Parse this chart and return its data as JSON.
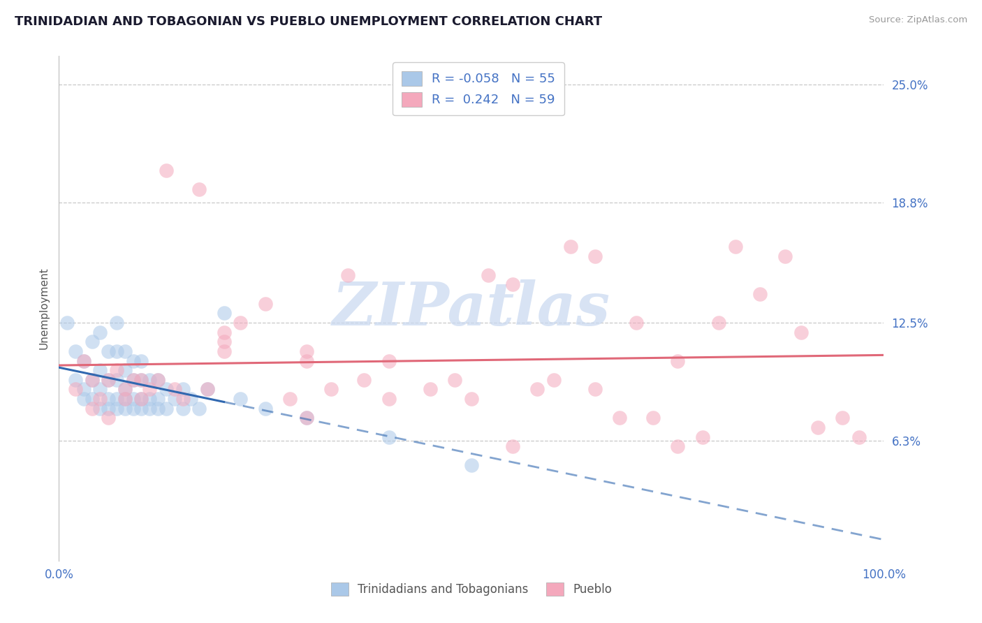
{
  "title": "TRINIDADIAN AND TOBAGONIAN VS PUEBLO UNEMPLOYMENT CORRELATION CHART",
  "source_text": "Source: ZipAtlas.com",
  "ylabel": "Unemployment",
  "xlim": [
    0.0,
    100.0
  ],
  "ylim": [
    0.0,
    26.5
  ],
  "yticks": [
    6.3,
    12.5,
    18.8,
    25.0
  ],
  "ytick_labels": [
    "6.3%",
    "12.5%",
    "18.8%",
    "25.0%"
  ],
  "xtick_labels": [
    "0.0%",
    "100.0%"
  ],
  "xticks": [
    0.0,
    100.0
  ],
  "blue_R": -0.058,
  "blue_N": 55,
  "pink_R": 0.242,
  "pink_N": 59,
  "blue_color": "#aac8e8",
  "pink_color": "#f4a8bc",
  "blue_line_color": "#3068b0",
  "pink_line_color": "#e06878",
  "legend_label_blue": "Trinidadians and Tobagonians",
  "legend_label_pink": "Pueblo",
  "watermark_color": "#c8d8f0",
  "background_color": "#ffffff",
  "grid_color": "#c8c8c8",
  "title_color": "#1a1a2e",
  "tick_label_color": "#4472c4",
  "blue_scatter_x": [
    1,
    2,
    2,
    3,
    3,
    3,
    4,
    4,
    4,
    5,
    5,
    5,
    5,
    6,
    6,
    6,
    6,
    7,
    7,
    7,
    7,
    7,
    8,
    8,
    8,
    8,
    8,
    9,
    9,
    9,
    9,
    10,
    10,
    10,
    10,
    11,
    11,
    11,
    12,
    12,
    12,
    13,
    13,
    14,
    15,
    15,
    16,
    17,
    18,
    20,
    22,
    25,
    30,
    40,
    50
  ],
  "blue_scatter_y": [
    12.5,
    11.0,
    9.5,
    10.5,
    9.0,
    8.5,
    11.5,
    9.5,
    8.5,
    12.0,
    10.0,
    9.0,
    8.0,
    11.0,
    9.5,
    8.5,
    8.0,
    12.5,
    11.0,
    9.5,
    8.5,
    8.0,
    11.0,
    10.0,
    9.0,
    8.5,
    8.0,
    10.5,
    9.5,
    8.5,
    8.0,
    10.5,
    9.5,
    8.5,
    8.0,
    9.5,
    8.5,
    8.0,
    9.5,
    8.5,
    8.0,
    9.0,
    8.0,
    8.5,
    9.0,
    8.0,
    8.5,
    8.0,
    9.0,
    13.0,
    8.5,
    8.0,
    7.5,
    6.5,
    5.0
  ],
  "pink_scatter_x": [
    2,
    3,
    4,
    5,
    6,
    7,
    8,
    9,
    10,
    11,
    12,
    13,
    14,
    15,
    17,
    18,
    20,
    20,
    22,
    25,
    28,
    30,
    30,
    33,
    35,
    37,
    40,
    45,
    48,
    50,
    52,
    55,
    58,
    60,
    62,
    65,
    68,
    70,
    72,
    75,
    78,
    80,
    82,
    85,
    88,
    90,
    92,
    95,
    97,
    4,
    6,
    8,
    10,
    20,
    30,
    40,
    55,
    65,
    75
  ],
  "pink_scatter_y": [
    9.0,
    10.5,
    9.5,
    8.5,
    9.5,
    10.0,
    9.0,
    9.5,
    8.5,
    9.0,
    9.5,
    20.5,
    9.0,
    8.5,
    19.5,
    9.0,
    11.5,
    12.0,
    12.5,
    13.5,
    8.5,
    10.5,
    11.0,
    9.0,
    15.0,
    9.5,
    10.5,
    9.0,
    9.5,
    8.5,
    15.0,
    14.5,
    9.0,
    9.5,
    16.5,
    9.0,
    7.5,
    12.5,
    7.5,
    10.5,
    6.5,
    12.5,
    16.5,
    14.0,
    16.0,
    12.0,
    7.0,
    7.5,
    6.5,
    8.0,
    7.5,
    8.5,
    9.5,
    11.0,
    7.5,
    8.5,
    6.0,
    16.0,
    6.0
  ]
}
